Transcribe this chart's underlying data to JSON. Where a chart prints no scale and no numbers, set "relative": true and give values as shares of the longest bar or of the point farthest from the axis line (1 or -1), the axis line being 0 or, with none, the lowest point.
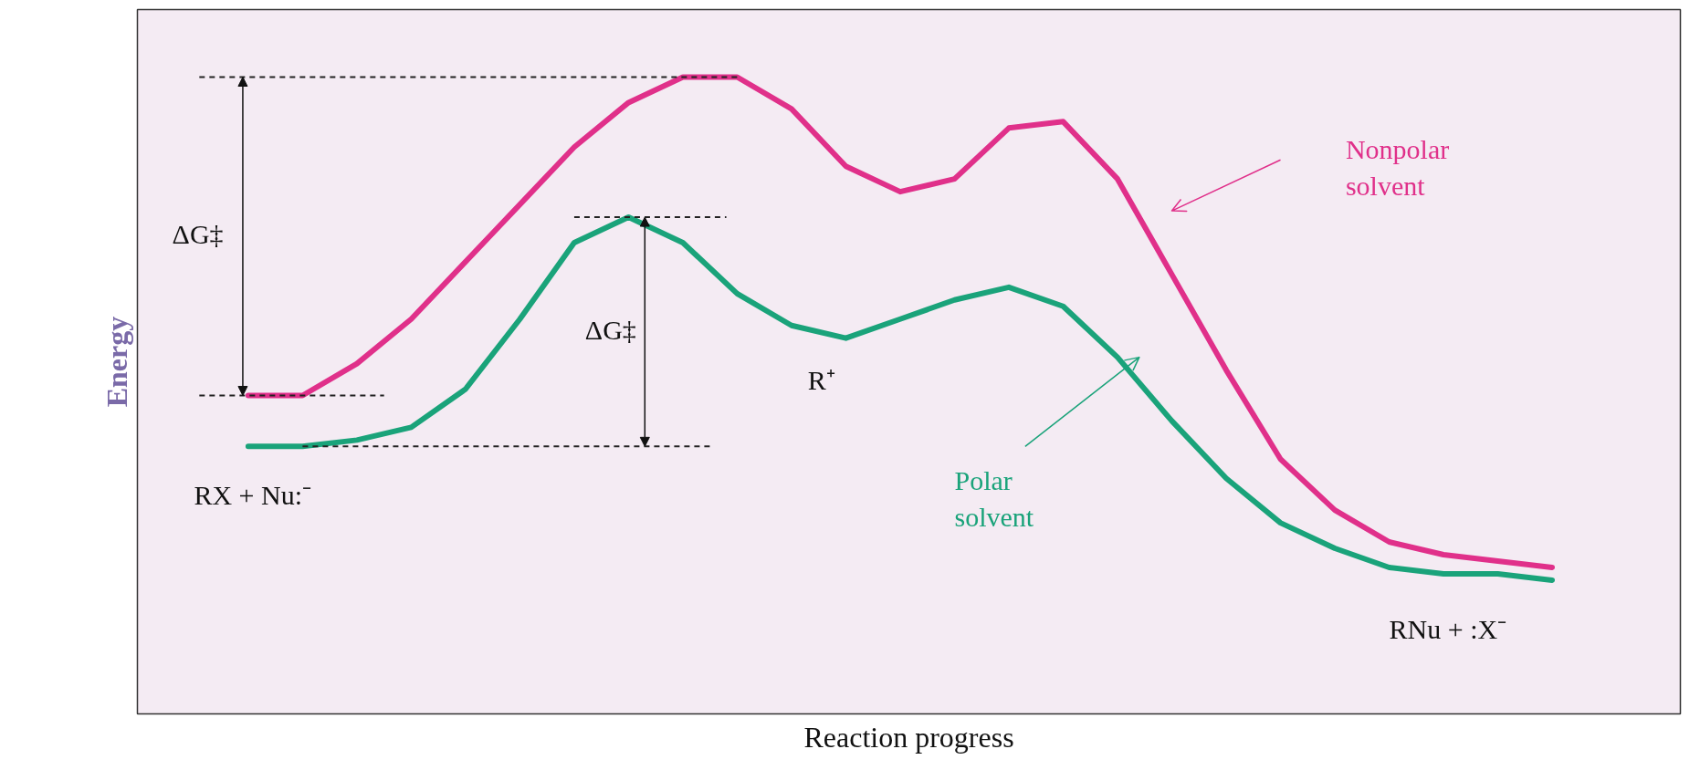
{
  "chart_data": {
    "type": "line",
    "relative": true,
    "xlabel": "Reaction progress",
    "ylabel": "Energy",
    "grid": false,
    "legend": "right",
    "marker": "none",
    "line_style": "solid",
    "tick_labels": false,
    "categories": [
      null,
      null,
      null,
      null,
      null,
      null,
      null,
      null,
      null,
      null,
      null,
      null,
      null,
      null,
      null,
      null,
      null,
      null,
      null,
      null,
      null,
      null,
      null,
      null,
      null
    ],
    "series": [
      {
        "name": "Nonpolar solvent",
        "color": "#e0308a",
        "values": [
          0.5,
          0.5,
          0.55,
          0.62,
          0.71,
          0.8,
          0.89,
          0.96,
          1.0,
          1.0,
          0.95,
          0.86,
          0.82,
          0.84,
          0.92,
          0.93,
          0.84,
          0.69,
          0.54,
          0.4,
          0.32,
          0.27,
          0.25,
          0.24,
          0.23
        ]
      },
      {
        "name": "Polar solvent",
        "color": "#1aa37a",
        "values": [
          0.42,
          0.42,
          0.43,
          0.45,
          0.51,
          0.62,
          0.74,
          0.78,
          0.74,
          0.66,
          0.61,
          0.59,
          0.62,
          0.65,
          0.67,
          0.64,
          0.56,
          0.46,
          0.37,
          0.3,
          0.26,
          0.23,
          0.22,
          0.22,
          0.21
        ]
      }
    ],
    "ref_lines": [
      {
        "axis": "y",
        "value": 1.0,
        "color": "#222222",
        "line_style": "dashed"
      },
      {
        "axis": "y",
        "value": 0.5,
        "color": "#222222",
        "line_style": "dashed"
      },
      {
        "axis": "y",
        "value": 0.78,
        "color": "#222222",
        "line_style": "dashed"
      },
      {
        "axis": "y",
        "value": 0.42,
        "color": "#222222",
        "line_style": "dashed"
      }
    ],
    "annotations": [
      "ΔG‡",
      "ΔG‡",
      "RX + Nu:⁻",
      "R⁺",
      "RNu + :X⁻"
    ]
  }
}
